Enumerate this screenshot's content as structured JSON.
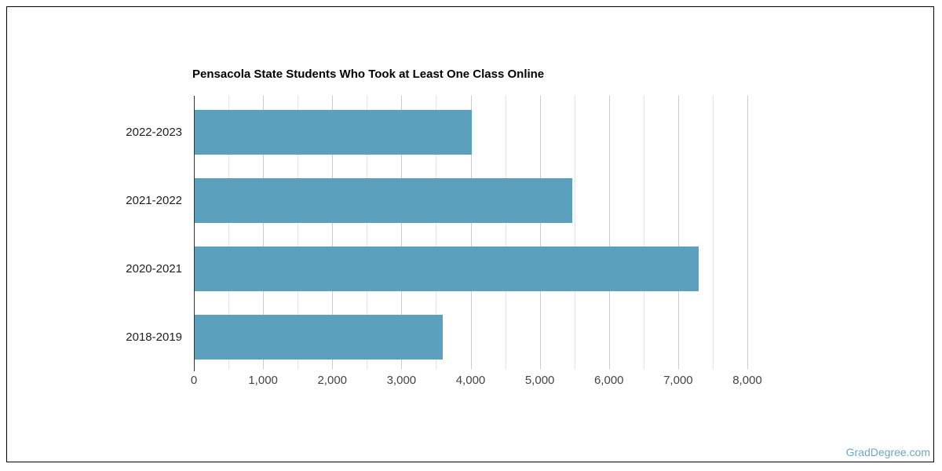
{
  "page": {
    "watermark": "GradDegree.com",
    "watermark_color": "#6ea7c4",
    "border_color": "#000000",
    "background_color": "#ffffff"
  },
  "chart_data": {
    "type": "bar",
    "orientation": "horizontal",
    "title": "Pensacola State Students Who Took at Least One Class Online",
    "categories": [
      "2022-2023",
      "2021-2022",
      "2020-2021",
      "2018-2019"
    ],
    "values": [
      4010,
      5460,
      7290,
      3590
    ],
    "xlabel": "",
    "ylabel": "",
    "xlim": [
      0,
      8000
    ],
    "x_major_ticks": [
      0,
      1000,
      2000,
      3000,
      4000,
      5000,
      6000,
      7000,
      8000
    ],
    "x_tick_labels": [
      "0",
      "1,000",
      "2,000",
      "3,000",
      "4,000",
      "5,000",
      "6,000",
      "7,000",
      "8,000"
    ],
    "minor_grid_step": 500,
    "grid": true,
    "legend": "none",
    "bar_color": "#5ba0bc",
    "axis_line_color": "#333333",
    "major_grid_color": "#cccccc",
    "minor_grid_color": "#e7e7e7",
    "title_color": "#000000",
    "category_label_color": "#222222",
    "tick_label_color": "#444444"
  }
}
